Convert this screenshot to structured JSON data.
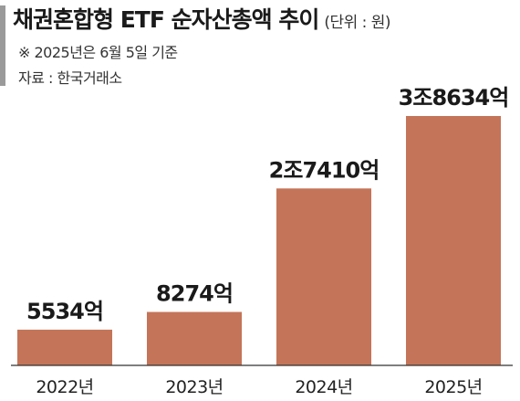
{
  "header": {
    "title": "채권혼합형 ETF 순자산총액 추이",
    "unit": "(단위 : 원)",
    "base_note": "※ 2025년은 6월 5일 기준",
    "source": "자료 : 한국거래소"
  },
  "colors": {
    "bar": "#c47458",
    "accent": "#9a9a9a"
  },
  "chart_data": {
    "type": "bar",
    "title": "채권혼합형 ETF 순자산총액 추이",
    "xlabel": "",
    "ylabel": "",
    "categories": [
      "2022년",
      "2023년",
      "2024년",
      "2025년"
    ],
    "values": [
      5534,
      8274,
      27410,
      38634
    ],
    "value_labels": [
      "5534억",
      "8274억",
      "2조7410억",
      "3조8634억"
    ],
    "unit": "억 원",
    "ylim": [
      0,
      38634
    ],
    "grid": false,
    "legend": "none"
  }
}
